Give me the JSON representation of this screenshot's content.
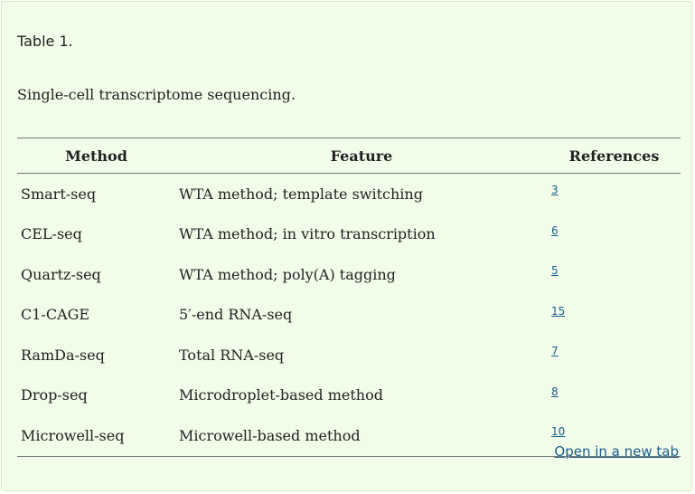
{
  "caption": {
    "label": "Table 1.",
    "title": "Single-cell transcriptome sequencing."
  },
  "table": {
    "headers": [
      "Method",
      "Feature",
      "References"
    ],
    "rows": [
      {
        "method": "Smart-seq",
        "feature": "WTA method; template switching",
        "ref": "3"
      },
      {
        "method": "CEL-seq",
        "feature": "WTA method; in vitro transcription",
        "ref": "6"
      },
      {
        "method": "Quartz-seq",
        "feature": "WTA method; poly(A) tagging",
        "ref": "5"
      },
      {
        "method": "C1-CAGE",
        "feature": "5′-end RNA-seq",
        "ref": "15"
      },
      {
        "method": "RamDa-seq",
        "feature": "Total RNA-seq",
        "ref": "7"
      },
      {
        "method": "Drop-seq",
        "feature": "Microdroplet-based method",
        "ref": "8"
      },
      {
        "method": "Microwell-seq",
        "feature": "Microwell-based method",
        "ref": "10"
      }
    ]
  },
  "footer": {
    "open_link": "Open in a new tab"
  }
}
